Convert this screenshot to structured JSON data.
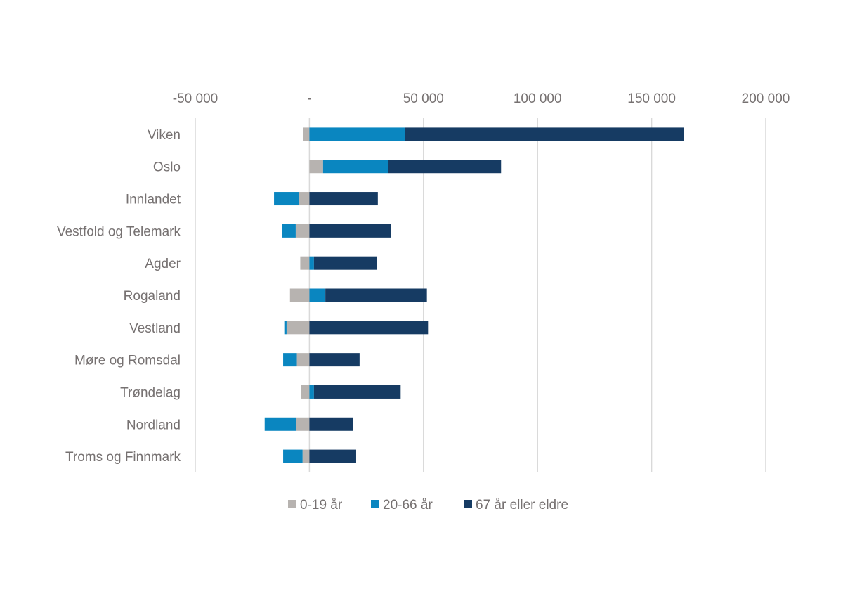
{
  "chart_data": {
    "type": "bar",
    "orientation": "horizontal",
    "stacked": true,
    "diverging": true,
    "title": "",
    "xlabel": "",
    "ylabel": "",
    "xlim": [
      -50000,
      200000
    ],
    "x_ticks": [
      -50000,
      0,
      50000,
      100000,
      150000,
      200000
    ],
    "x_tick_labels": [
      "-50 000",
      "-",
      "50 000",
      "100 000",
      "150 000",
      "200 000"
    ],
    "x_axis_position": "top",
    "grid": true,
    "legend_position": "bottom",
    "categories": [
      "Viken",
      "Oslo",
      "Innlandet",
      "Vestfold og Telemark",
      "Agder",
      "Rogaland",
      "Vestland",
      "Møre og Romsdal",
      "Trøndelag",
      "Nordland",
      "Troms og Finnmark"
    ],
    "series": [
      {
        "name": "0-19 år",
        "color": "#b7b3b0",
        "values": [
          -2700,
          6000,
          -4500,
          -6000,
          -4000,
          -8500,
          -10000,
          -5500,
          -3800,
          -5800,
          -3000
        ]
      },
      {
        "name": "20-66 år",
        "color": "#0a86c0",
        "values": [
          42000,
          28500,
          -11000,
          -6000,
          2000,
          7000,
          -1000,
          -6000,
          2000,
          -13800,
          -8500
        ]
      },
      {
        "name": "67 år eller eldre",
        "color": "#163b63",
        "values": [
          122000,
          49500,
          30000,
          35800,
          27500,
          44500,
          52000,
          22000,
          38000,
          19000,
          20500
        ]
      }
    ]
  }
}
